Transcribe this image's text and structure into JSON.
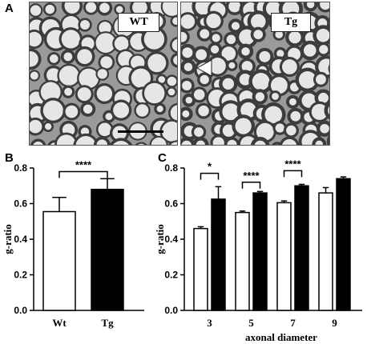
{
  "figure": {
    "panel_a": {
      "letter": "A",
      "wt_label": "WT",
      "tg_label": "Tg"
    },
    "panel_b": {
      "letter": "B"
    },
    "panel_c": {
      "letter": "C"
    }
  },
  "colors": {
    "open_bar": "#ffffff",
    "filled_bar": "#000000",
    "axis": "#000000",
    "tissue": "#9a9a9a",
    "myelin": "#3c3c3c",
    "axon": "#e6e6e6"
  },
  "chart_data": [
    {
      "type": "bar",
      "panel": "B",
      "ylabel": "g-ratio",
      "ylim": [
        0,
        0.8
      ],
      "yticks": [
        "0.0",
        "0.2",
        "0.4",
        "0.6",
        "0.8"
      ],
      "categories": [
        "Wt",
        "Tg"
      ],
      "values": [
        0.555,
        0.68
      ],
      "errors": [
        0.08,
        0.06
      ],
      "fills": [
        "open",
        "filled"
      ],
      "significance": [
        {
          "from": 0,
          "to": 1,
          "label": "****"
        }
      ]
    },
    {
      "type": "bar",
      "panel": "C",
      "ylabel": "g-ratio",
      "xlabel": "axonal diameter",
      "ylim": [
        0,
        0.8
      ],
      "yticks": [
        "0.0",
        "0.2",
        "0.4",
        "0.6",
        "0.8"
      ],
      "x": [
        "3",
        "5",
        "7",
        "9"
      ],
      "series": [
        {
          "fill": "open",
          "values": [
            0.46,
            0.55,
            0.605,
            0.66
          ],
          "errors": [
            0.01,
            0.008,
            0.01,
            0.03
          ]
        },
        {
          "fill": "filled",
          "values": [
            0.625,
            0.66,
            0.7,
            0.74
          ],
          "errors": [
            0.07,
            0.008,
            0.008,
            0.01
          ]
        }
      ],
      "significance": [
        {
          "group": 0,
          "label": "*"
        },
        {
          "group": 1,
          "label": "****"
        },
        {
          "group": 2,
          "label": "****"
        }
      ]
    }
  ]
}
